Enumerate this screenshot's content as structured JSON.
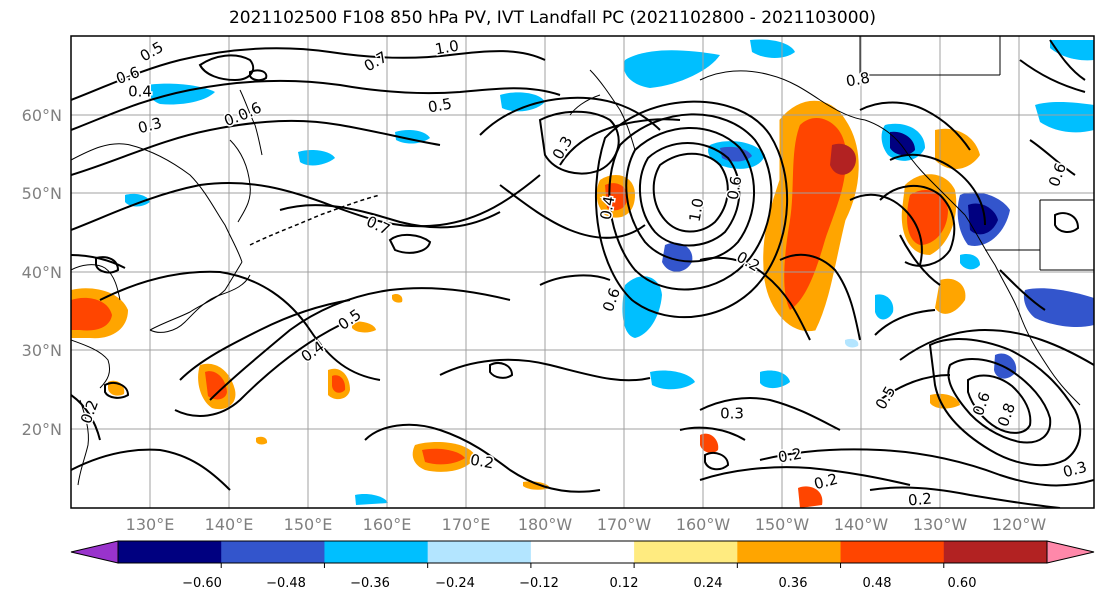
{
  "title": "2021102500 F108 850 hPa PV, IVT Landfall PC (2021102800 - 2021103000)",
  "map": {
    "lat_ticks": [
      "60°N",
      "50°N",
      "40°N",
      "30°N",
      "20°N"
    ],
    "lon_ticks": [
      "130°E",
      "140°E",
      "150°E",
      "160°E",
      "170°E",
      "180°W",
      "170°W",
      "160°W",
      "150°W",
      "140°W",
      "130°W",
      "120°W"
    ]
  },
  "contour_labels": [
    "0.5",
    "0.6",
    "0.4",
    "0.3",
    "1.0",
    "0.7",
    "0.8",
    "0.5",
    "0.3",
    "0.7",
    "0.6",
    "0.5",
    "0.4",
    "0.2",
    "0.6",
    "1.0",
    "0.6",
    "0.2",
    "0.3",
    "0.2",
    "0.2",
    "0.2",
    "0.5",
    "0.8",
    "0.3",
    "0.8",
    "0.6",
    "0.6",
    "0.4",
    "0.2"
  ],
  "colorbar": {
    "ticks": [
      "−0.60",
      "−0.48",
      "−0.36",
      "−0.24",
      "−0.12",
      "0.12",
      "0.24",
      "0.36",
      "0.48",
      "0.60"
    ],
    "colors": [
      "#9933cc",
      "#000080",
      "#3355cc",
      "#00bfff",
      "#b3e5ff",
      "#ffffff",
      "#ffeb80",
      "#ffa500",
      "#ff4500",
      "#b22222",
      "#ff88aa"
    ]
  }
}
